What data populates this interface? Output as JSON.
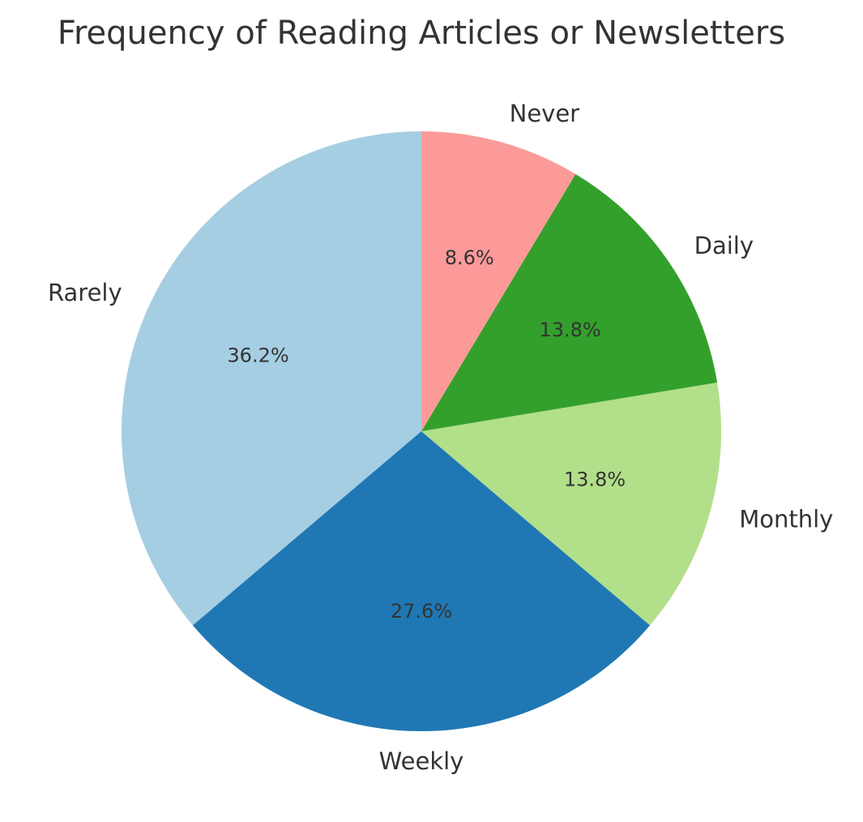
{
  "chart_data": {
    "type": "pie",
    "title": "Frequency of Reading Articles or Newsletters",
    "start_angle_deg": 90,
    "direction": "counterclockwise",
    "slices": [
      {
        "label": "Rarely",
        "value": 36.2,
        "pct_label": "36.2%",
        "color": "#a6cee3"
      },
      {
        "label": "Weekly",
        "value": 27.6,
        "pct_label": "27.6%",
        "color": "#1f78b4"
      },
      {
        "label": "Monthly",
        "value": 13.8,
        "pct_label": "13.8%",
        "color": "#b2df8a"
      },
      {
        "label": "Daily",
        "value": 13.8,
        "pct_label": "13.8%",
        "color": "#33a02c"
      },
      {
        "label": "Never",
        "value": 8.6,
        "pct_label": "8.6%",
        "color": "#fb9a99"
      }
    ]
  }
}
